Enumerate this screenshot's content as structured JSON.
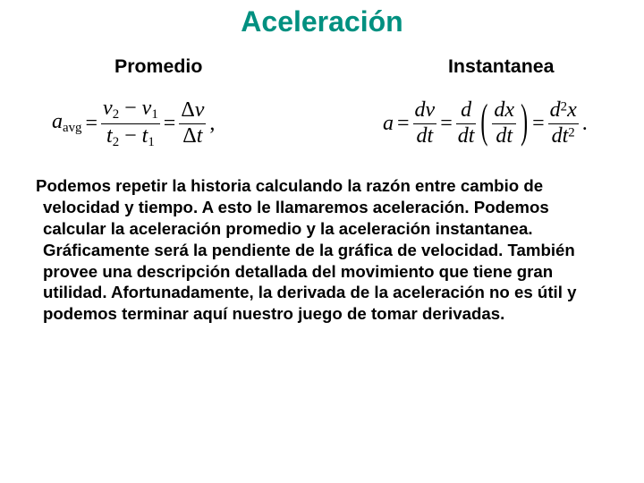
{
  "colors": {
    "title": "#009080",
    "text": "#000000",
    "bg": "#ffffff"
  },
  "fonts": {
    "title_pt": 24,
    "heading_pt": 16,
    "body_pt": 14,
    "equation_pt": 18
  },
  "title": "Aceleración",
  "subhead_left": "Promedio",
  "subhead_right": "Instantanea",
  "eq_avg": {
    "lhs_sym": "a",
    "lhs_sub": "avg",
    "eq1": "=",
    "frac1_num_left": "v",
    "frac1_num_sub_left": "2",
    "frac1_num_minus": " − ",
    "frac1_num_right": "v",
    "frac1_num_sub_right": "1",
    "frac1_den_left": "t",
    "frac1_den_sub_left": "2",
    "frac1_den_minus": " − ",
    "frac1_den_right": "t",
    "frac1_den_sub_right": "1",
    "eq2": "=",
    "frac2_num_delta": "Δ",
    "frac2_num_sym": "v",
    "frac2_den_delta": "Δ",
    "frac2_den_sym": "t",
    "trail": ","
  },
  "eq_inst": {
    "lhs": "a",
    "eq1": "=",
    "f1_num_d": "d",
    "f1_num_v": "v",
    "f1_den_d": "d",
    "f1_den_t": "t",
    "eq2": "=",
    "f2_num_d": "d",
    "f2_den_d": "d",
    "f2_den_t": "t",
    "inner_num_d": "d",
    "inner_num_x": "x",
    "inner_den_d": "d",
    "inner_den_t": "t",
    "eq3": "=",
    "f3_num_d": "d",
    "f3_num_sup": "2",
    "f3_num_x": "x",
    "f3_den_d": "d",
    "f3_den_t": "t",
    "f3_den_sup": "2",
    "trail": "."
  },
  "body": {
    "l1": "Podemos repetir la historia calculando la razón entre cambio de",
    "l2": "velocidad y tiempo.  A esto le llamaremos aceleración.  Podemos",
    "l3": "calcular la aceleración promedio y la aceleración instantanea.",
    "l4": "Gráficamente será la pendiente de la gráfica de velocidad.  También",
    "l5": "provee una descripción detallada del movimiento que tiene gran",
    "l6": "utilidad.  Afortunadamente, la derivada de la aceleración no es útil y",
    "l7": "podemos terminar aquí nuestro juego de tomar derivadas."
  }
}
